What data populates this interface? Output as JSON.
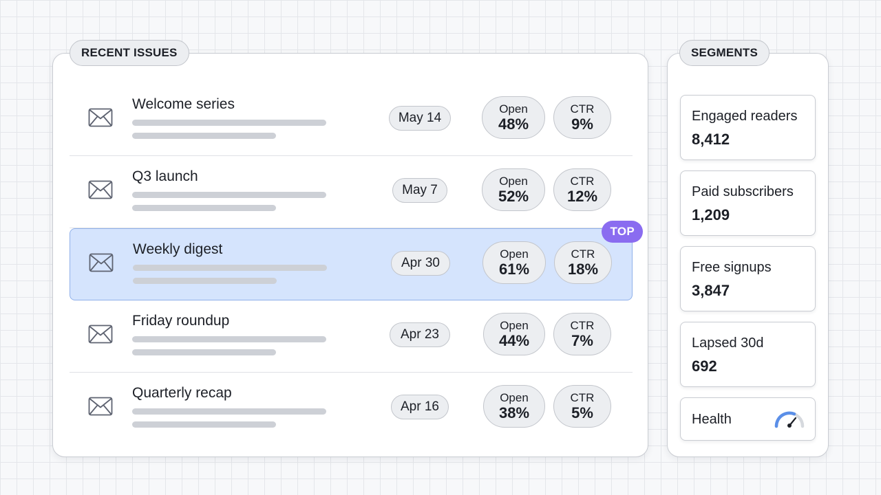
{
  "issues_panel": {
    "title": "RECENT ISSUES",
    "rows": [
      {
        "title": "Welcome series",
        "date": "May 14",
        "open_label": "Open",
        "open_value": "48%",
        "ctr_label": "CTR",
        "ctr_value": "9%"
      },
      {
        "title": "Q3 launch",
        "date": "May 7",
        "open_label": "Open",
        "open_value": "52%",
        "ctr_label": "CTR",
        "ctr_value": "12%"
      },
      {
        "title": "Weekly digest",
        "date": "Apr 30",
        "open_label": "Open",
        "open_value": "61%",
        "ctr_label": "CTR",
        "ctr_value": "18%",
        "badge": "TOP"
      },
      {
        "title": "Friday roundup",
        "date": "Apr 23",
        "open_label": "Open",
        "open_value": "44%",
        "ctr_label": "CTR",
        "ctr_value": "7%"
      },
      {
        "title": "Quarterly recap",
        "date": "Apr 16",
        "open_label": "Open",
        "open_value": "38%",
        "ctr_label": "CTR",
        "ctr_value": "5%"
      }
    ]
  },
  "segments_panel": {
    "title": "SEGMENTS",
    "cards": [
      {
        "label": "Engaged readers",
        "value": "8,412"
      },
      {
        "label": "Paid subscribers",
        "value": "1,209"
      },
      {
        "label": "Free signups",
        "value": "3,847"
      },
      {
        "label": "Lapsed 30d",
        "value": "692"
      }
    ],
    "health": {
      "label": "Health",
      "icon": "gauge-icon"
    }
  },
  "icons": {
    "row_icon": "envelope-icon"
  },
  "colors": {
    "highlight_bg": "#d5e4fd",
    "highlight_border": "#8fb0ea",
    "badge": "#8a6cf0",
    "gauge_accent": "#5b8fe8"
  }
}
